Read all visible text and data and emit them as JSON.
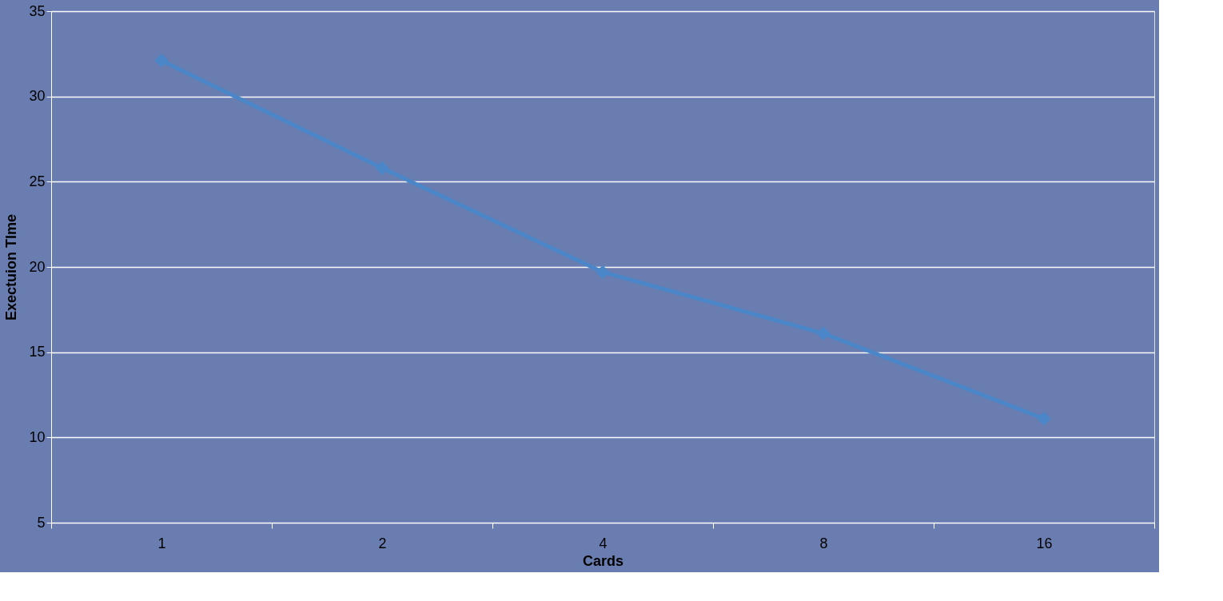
{
  "chart_data": {
    "type": "line",
    "xlabel": "Cards",
    "ylabel": "Exectuion TIme",
    "categories": [
      "1",
      "2",
      "4",
      "8",
      "16"
    ],
    "series": [
      {
        "color": "#4a86c8",
        "values": [
          32.1,
          25.8,
          19.7,
          16.1,
          11.1
        ]
      }
    ],
    "ylim": [
      5,
      35
    ],
    "yticks": [
      5,
      10,
      15,
      20,
      25,
      30,
      35
    ],
    "grid": "y",
    "marker": "diamond",
    "line_style": "solid"
  }
}
